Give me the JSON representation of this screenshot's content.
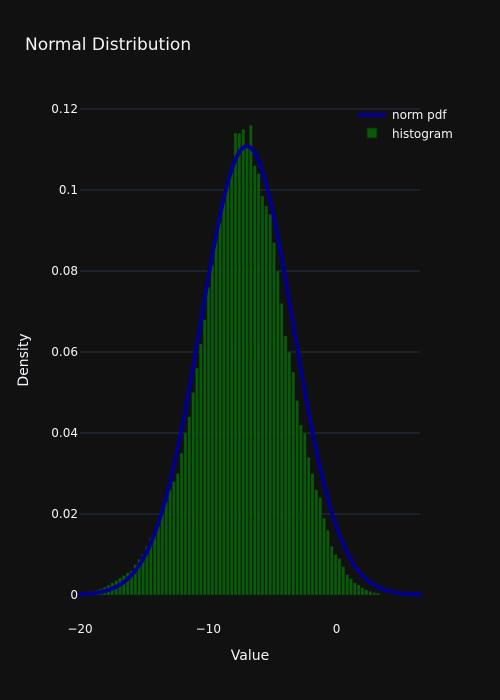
{
  "chart_data": {
    "type": "bar",
    "title": "Normal Distribution",
    "xlabel": "Value",
    "ylabel": "Density",
    "xlim": [
      -20,
      6.5
    ],
    "ylim": [
      0,
      0.125
    ],
    "x_ticks": [
      -20,
      -10,
      0
    ],
    "x_tick_labels": [
      "−20",
      "−10",
      "0"
    ],
    "y_ticks": [
      0,
      0.02,
      0.04,
      0.06,
      0.08,
      0.1,
      0.12
    ],
    "y_tick_labels": [
      "0",
      "0.02",
      "0.04",
      "0.06",
      "0.08",
      "0.1",
      "0.12"
    ],
    "grid": true,
    "legend_position": "top-right",
    "series": [
      {
        "name": "norm pdf",
        "kind": "line",
        "mean": -7.0,
        "std": 3.6,
        "color": "#00008b"
      },
      {
        "name": "histogram",
        "kind": "bar",
        "color": "#0b5a0b",
        "bin_start": -20.0,
        "bin_width": 0.3,
        "values": [
          0.0005,
          0.0006,
          0.0008,
          0.001,
          0.0012,
          0.0015,
          0.0019,
          0.0024,
          0.003,
          0.0036,
          0.0042,
          0.0048,
          0.0055,
          0.006,
          0.0075,
          0.0088,
          0.01,
          0.012,
          0.014,
          0.015,
          0.017,
          0.02,
          0.023,
          0.026,
          0.028,
          0.03,
          0.035,
          0.04,
          0.044,
          0.05,
          0.056,
          0.062,
          0.068,
          0.076,
          0.0815,
          0.0885,
          0.092,
          0.097,
          0.102,
          0.106,
          0.114,
          0.114,
          0.115,
          0.111,
          0.116,
          0.106,
          0.104,
          0.0985,
          0.096,
          0.094,
          0.087,
          0.08,
          0.072,
          0.064,
          0.06,
          0.055,
          0.048,
          0.042,
          0.04,
          0.034,
          0.03,
          0.026,
          0.024,
          0.019,
          0.016,
          0.012,
          0.01,
          0.009,
          0.007,
          0.005,
          0.004,
          0.003,
          0.0025,
          0.0018,
          0.0013,
          0.0009,
          0.0006,
          0.0004
        ]
      }
    ]
  }
}
